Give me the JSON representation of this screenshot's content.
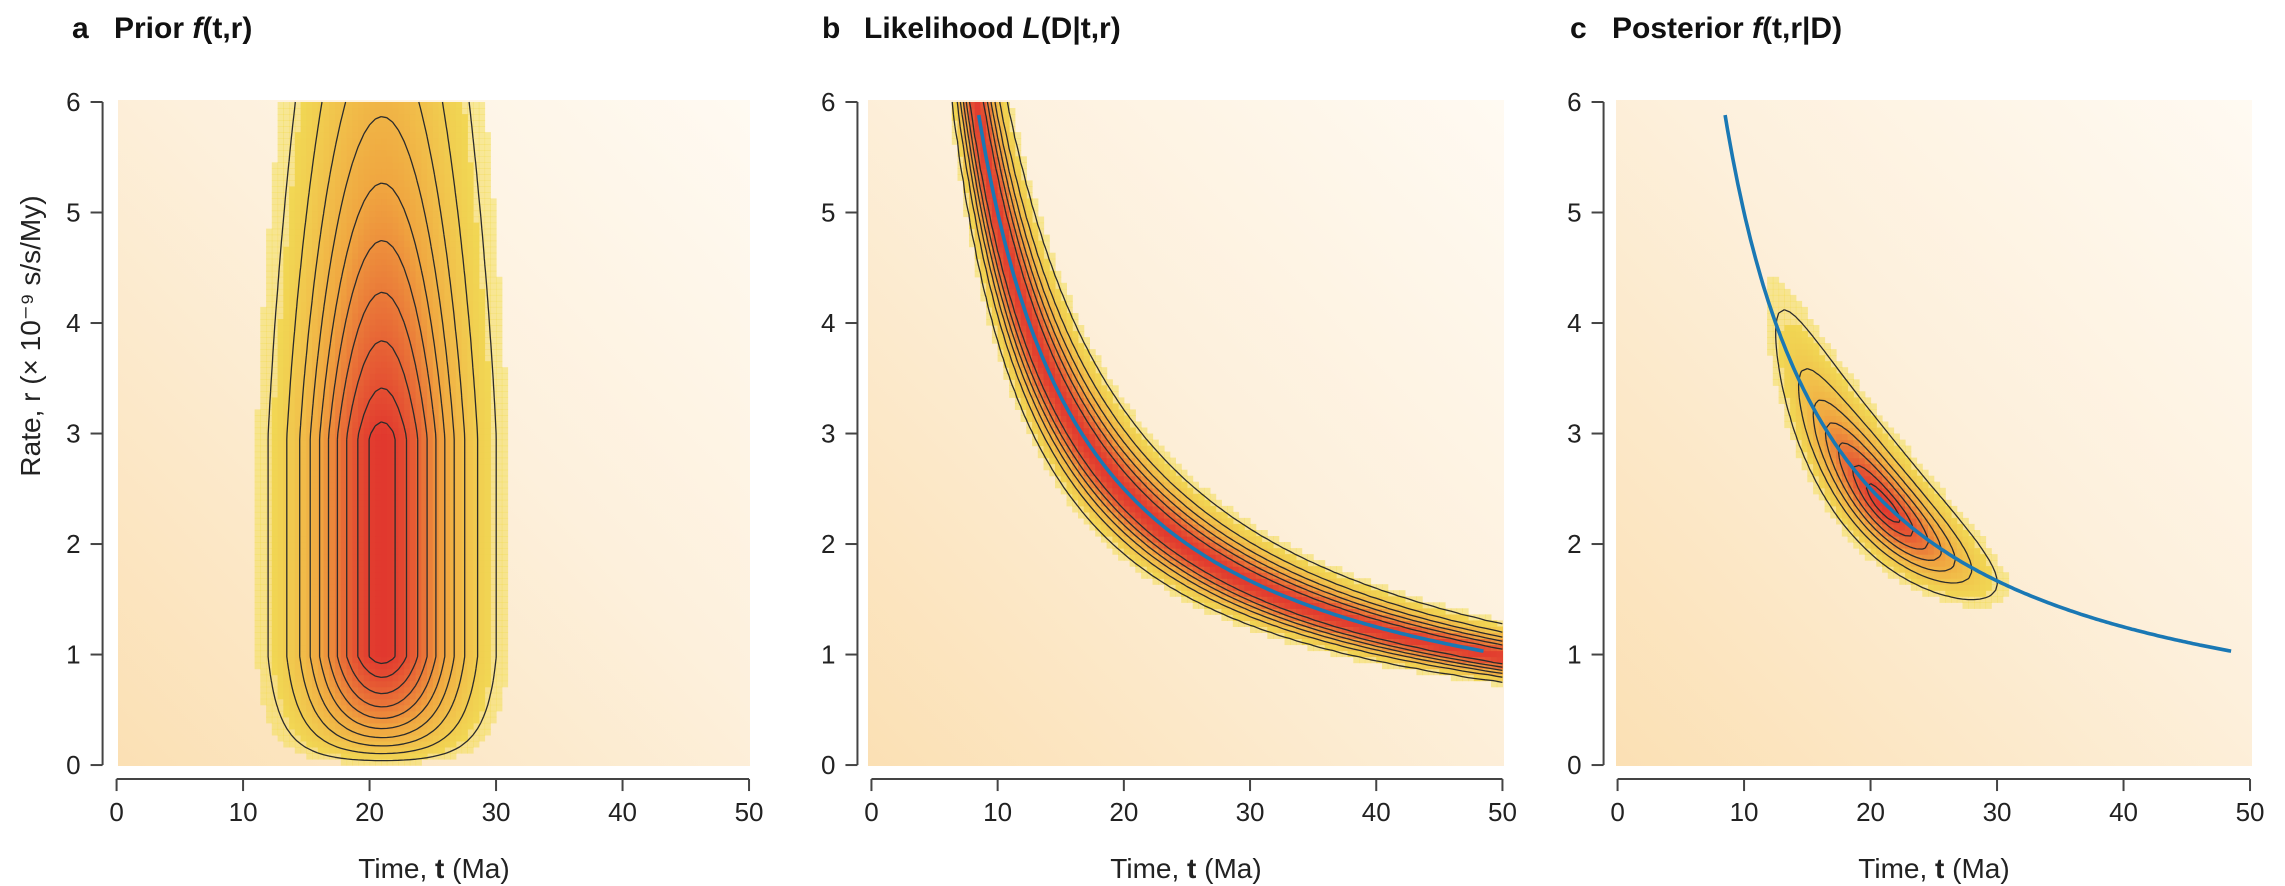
{
  "ylabel_text": "Rate, r (× 10⁻⁹ s/s/My)",
  "colors": {
    "background_light": "#fdf2df",
    "background_warm": "#fbe3bc",
    "yellow": "#f2e65a",
    "orange": "#f0a640",
    "red": "#e1382e",
    "contour": "#2b2b2b",
    "blue_curve": "#1a78b4",
    "axis": "#444444"
  },
  "chart_data": [
    {
      "type": "heatmap",
      "panel_letter": "a",
      "title": "Prior f(t,r)",
      "title_parts": {
        "lead": "Prior ",
        "italic": "f",
        "paren": "(t,r)"
      },
      "xlabel": "Time, t (Ma)",
      "ylabel": "Rate, r (× 10⁻⁹ s/s/My)",
      "xlim": [
        0,
        50
      ],
      "ylim": [
        0,
        6
      ],
      "xticks": [
        "0",
        "10",
        "20",
        "30",
        "40",
        "50"
      ],
      "yticks": [
        "0",
        "1",
        "2",
        "3",
        "4",
        "5",
        "6"
      ],
      "density": {
        "kind": "prior",
        "t_mode": 21,
        "t_sd": 4.2,
        "r_shape": 2,
        "r_scale": 2.0,
        "contour_levels": [
          0.1,
          0.2,
          0.3,
          0.4,
          0.5,
          0.6,
          0.7,
          0.8,
          0.9,
          0.97
        ]
      },
      "curve": null
    },
    {
      "type": "heatmap",
      "panel_letter": "b",
      "title": "Likelihood L(D|t,r)",
      "title_parts": {
        "lead": "Likelihood ",
        "italic": "L",
        "paren": "(D|t,r)"
      },
      "xlabel": "Time, t (Ma)",
      "ylabel": "",
      "xlim": [
        0,
        50
      ],
      "ylim": [
        0,
        6
      ],
      "xticks": [
        "0",
        "10",
        "20",
        "30",
        "40",
        "50"
      ],
      "yticks": [
        "0",
        "1",
        "2",
        "3",
        "4",
        "5",
        "6"
      ],
      "density": {
        "kind": "likelihood",
        "distance": 50,
        "log_sd": 0.12,
        "contour_levels": [
          0.1,
          0.25,
          0.4,
          0.55,
          0.7,
          0.85
        ]
      },
      "curve": {
        "label": "",
        "equation": "r = 50 / t",
        "t_range": [
          8.3,
          48.5
        ]
      }
    },
    {
      "type": "heatmap",
      "panel_letter": "c",
      "title": "Posterior f(t,r|D)",
      "title_parts": {
        "lead": "Posterior ",
        "italic": "f",
        "paren": "(t,r|D)"
      },
      "xlabel": "Time, t (Ma)",
      "ylabel": "",
      "xlim": [
        0,
        50
      ],
      "ylim": [
        0,
        6
      ],
      "xticks": [
        "0",
        "10",
        "20",
        "30",
        "40",
        "50"
      ],
      "yticks": [
        "0",
        "1",
        "2",
        "3",
        "4",
        "5",
        "6"
      ],
      "density": {
        "kind": "posterior",
        "distance": 50,
        "log_sd": 0.12,
        "t_mode": 21,
        "t_sd": 4.2,
        "r_shape": 2,
        "r_scale": 2.0,
        "contour_levels": [
          0.1,
          0.25,
          0.4,
          0.55,
          0.7,
          0.85,
          0.95
        ]
      },
      "curve": {
        "label": "",
        "equation": "r = 50 / t",
        "t_range": [
          8.3,
          48.5
        ]
      }
    }
  ]
}
